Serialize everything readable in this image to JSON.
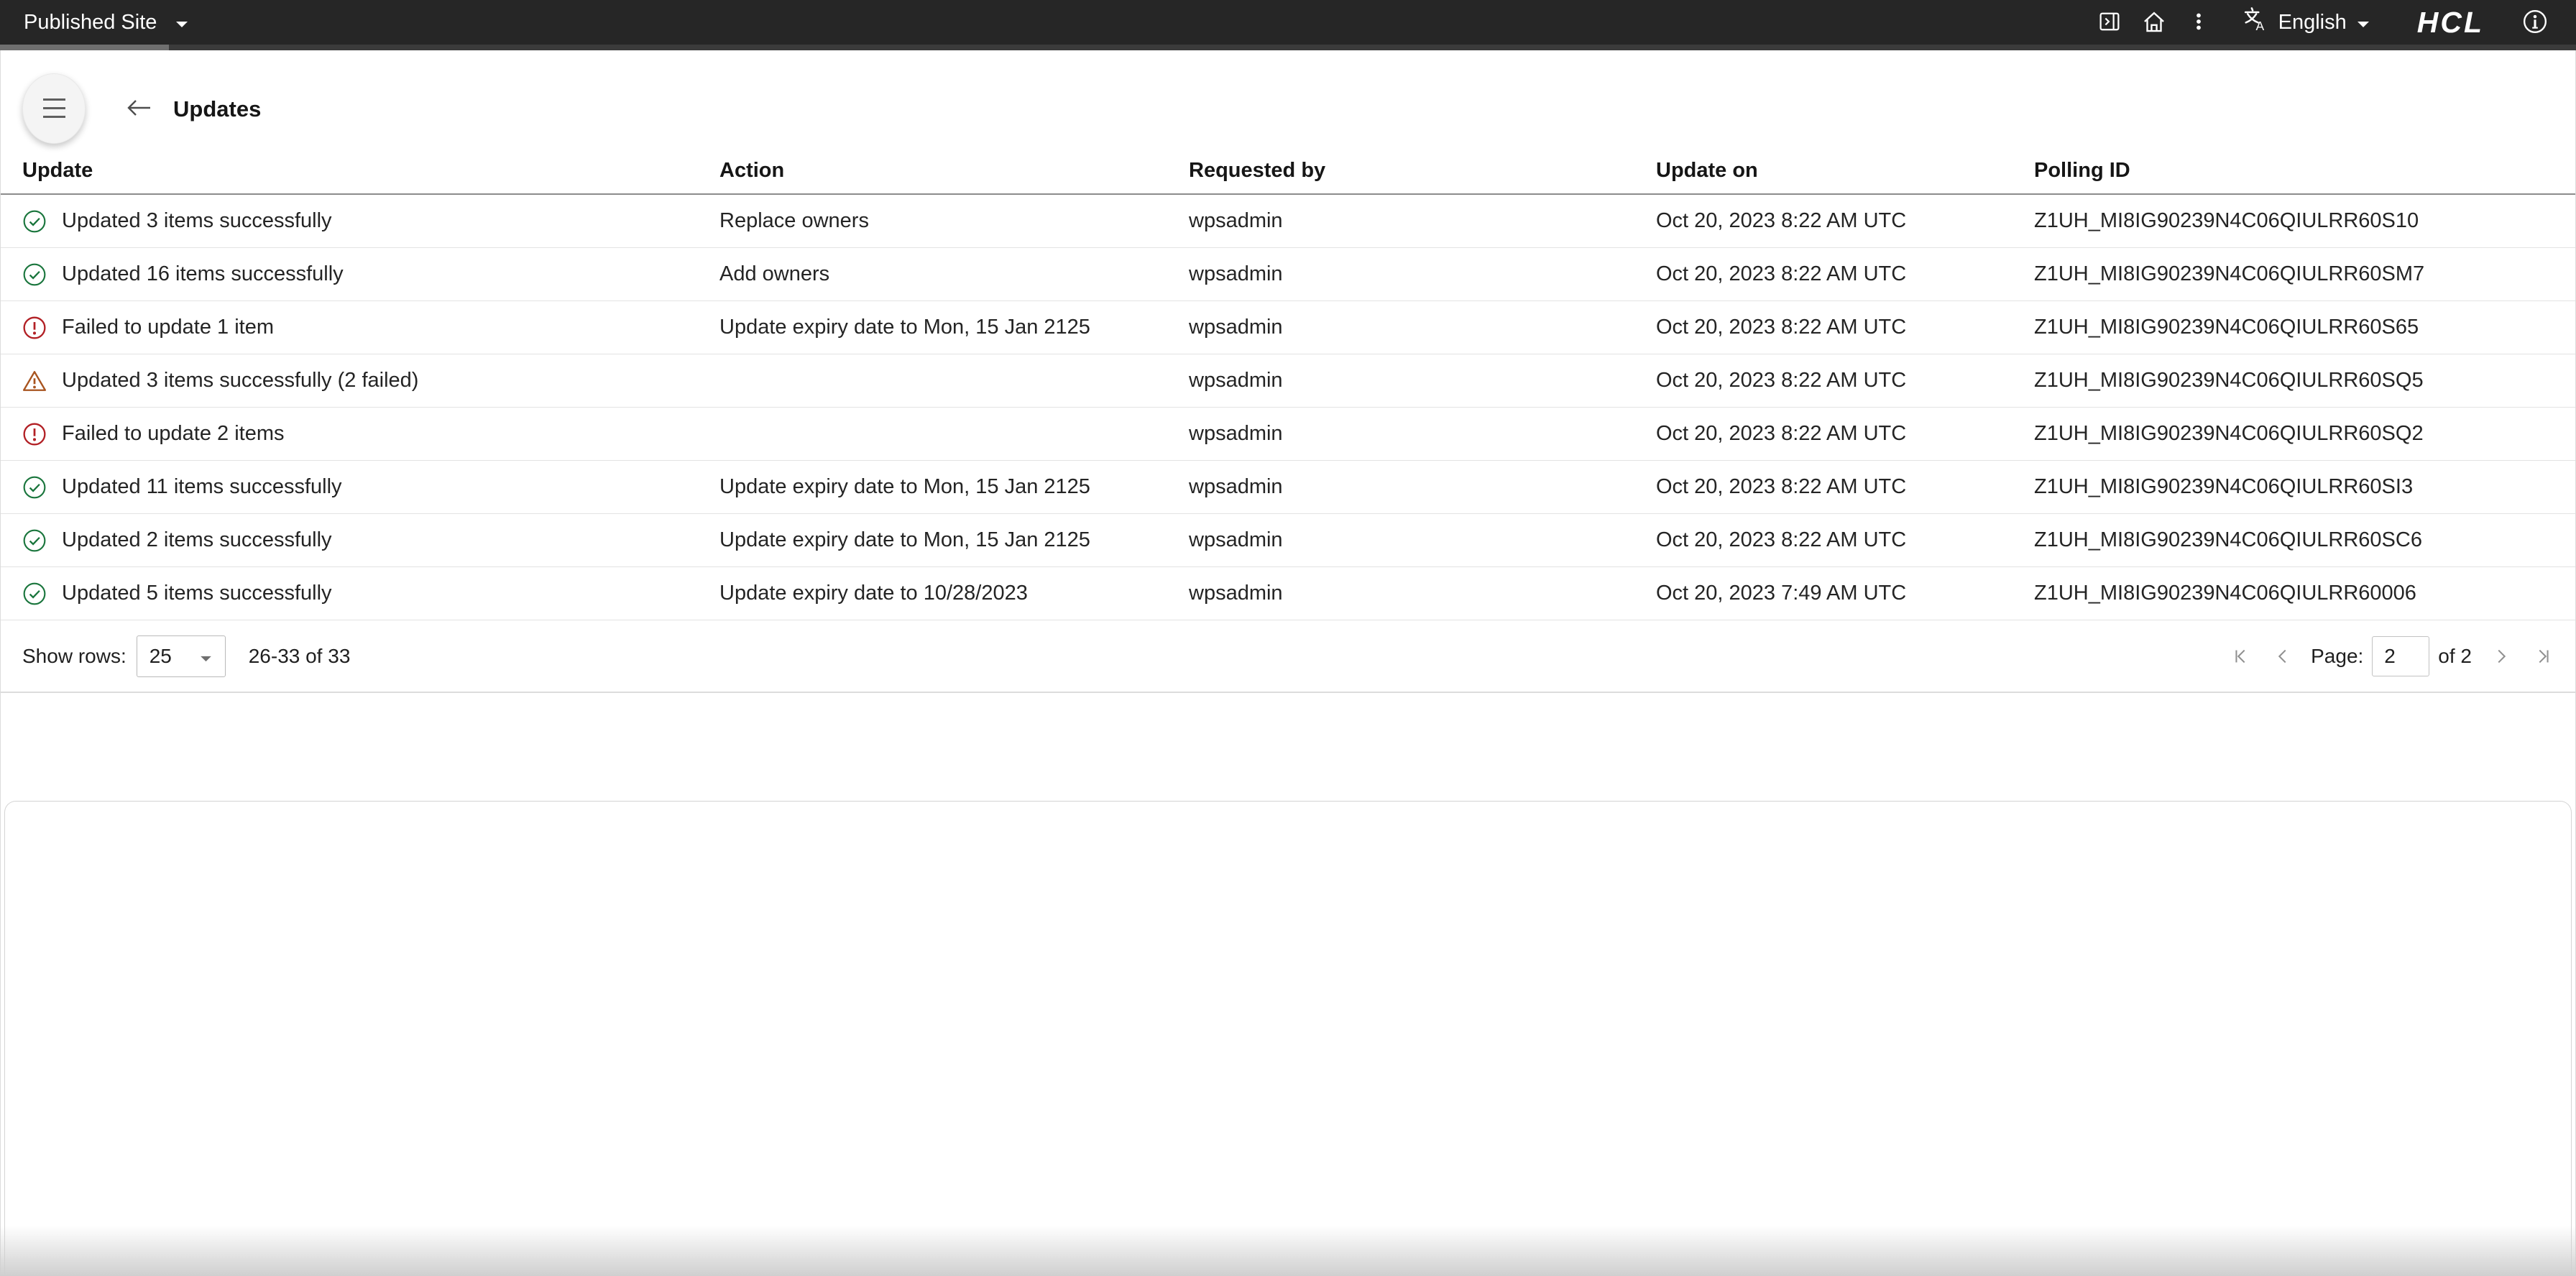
{
  "topbar": {
    "site_selector": "Published Site",
    "language": "English",
    "logo": "HCL"
  },
  "header": {
    "title": "Updates"
  },
  "table": {
    "columns": [
      "Update",
      "Action",
      "Requested by",
      "Update on",
      "Polling ID"
    ],
    "rows": [
      {
        "status": "success",
        "update": "Updated 3 items successfully",
        "action": "Replace owners",
        "requested_by": "wpsadmin",
        "update_on": "Oct 20, 2023 8:22 AM UTC",
        "polling_id": "Z1UH_MI8IG90239N4C06QIULRR60S10"
      },
      {
        "status": "success",
        "update": "Updated 16 items successfully",
        "action": "Add owners",
        "requested_by": "wpsadmin",
        "update_on": "Oct 20, 2023 8:22 AM UTC",
        "polling_id": "Z1UH_MI8IG90239N4C06QIULRR60SM7"
      },
      {
        "status": "error",
        "update": "Failed to update 1 item",
        "action": "Update expiry date to Mon, 15 Jan 2125",
        "requested_by": "wpsadmin",
        "update_on": "Oct 20, 2023 8:22 AM UTC",
        "polling_id": "Z1UH_MI8IG90239N4C06QIULRR60S65"
      },
      {
        "status": "warning",
        "update": "Updated 3 items successfully (2 failed)",
        "action": "",
        "requested_by": "wpsadmin",
        "update_on": "Oct 20, 2023 8:22 AM UTC",
        "polling_id": "Z1UH_MI8IG90239N4C06QIULRR60SQ5"
      },
      {
        "status": "error",
        "update": "Failed to update 2 items",
        "action": "",
        "requested_by": "wpsadmin",
        "update_on": "Oct 20, 2023 8:22 AM UTC",
        "polling_id": "Z1UH_MI8IG90239N4C06QIULRR60SQ2"
      },
      {
        "status": "success",
        "update": "Updated 11 items successfully",
        "action": "Update expiry date to Mon, 15 Jan 2125",
        "requested_by": "wpsadmin",
        "update_on": "Oct 20, 2023 8:22 AM UTC",
        "polling_id": "Z1UH_MI8IG90239N4C06QIULRR60SI3"
      },
      {
        "status": "success",
        "update": "Updated 2 items successfully",
        "action": "Update expiry date to Mon, 15 Jan 2125",
        "requested_by": "wpsadmin",
        "update_on": "Oct 20, 2023 8:22 AM UTC",
        "polling_id": "Z1UH_MI8IG90239N4C06QIULRR60SC6"
      },
      {
        "status": "success",
        "update": "Updated 5 items successfully",
        "action": "Update expiry date to 10/28/2023",
        "requested_by": "wpsadmin",
        "update_on": "Oct 20, 2023 7:49 AM UTC",
        "polling_id": "Z1UH_MI8IG90239N4C06QIULRR60006"
      }
    ]
  },
  "footer": {
    "show_rows_label": "Show rows:",
    "rows_per_page": "25",
    "range": "26-33 of 33",
    "page_label": "Page:",
    "page": "2",
    "of_label": "of 2"
  },
  "colors": {
    "topbar_bg": "#262626",
    "success_green": "#19753c",
    "error_red": "#b22025",
    "warning_orange": "#a8541f",
    "header_border": "#8c8c8c",
    "row_border": "#e3e3e3"
  }
}
